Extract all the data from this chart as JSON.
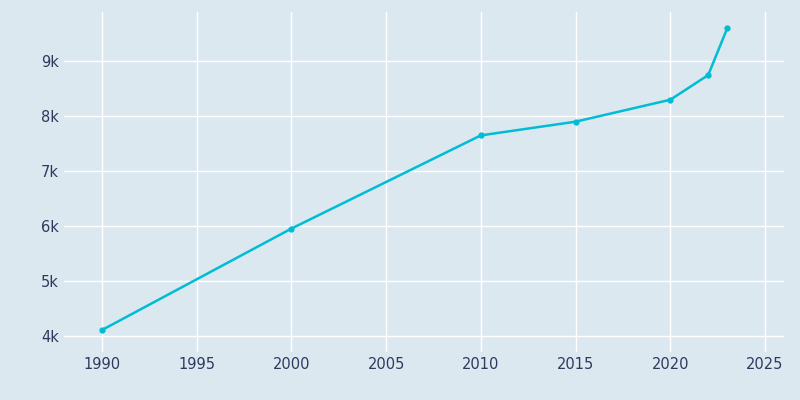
{
  "years": [
    1990,
    2000,
    2010,
    2015,
    2020,
    2022,
    2023
  ],
  "population": [
    4100,
    5950,
    7650,
    7900,
    8300,
    8750,
    9600
  ],
  "line_color": "#00bcd4",
  "marker": "o",
  "marker_size": 3.5,
  "line_width": 1.8,
  "background_color": "#dce8f0",
  "plot_bg_color": "#dce8f0",
  "grid_color": "#ffffff",
  "xlim": [
    1988,
    2026
  ],
  "ylim": [
    3700,
    9900
  ],
  "xticks": [
    1990,
    1995,
    2000,
    2005,
    2010,
    2015,
    2020,
    2025
  ],
  "ytick_values": [
    4000,
    5000,
    6000,
    7000,
    8000,
    9000
  ],
  "ytick_labels": [
    "4k",
    "5k",
    "6k",
    "7k",
    "8k",
    "9k"
  ],
  "tick_color": "#2d3a5e",
  "tick_fontsize": 10.5
}
